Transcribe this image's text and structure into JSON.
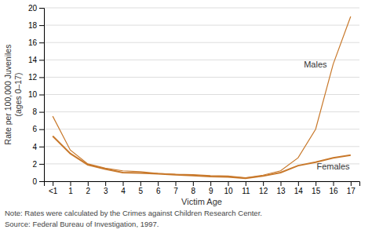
{
  "chart_data": {
    "type": "line",
    "y_label": "Rate per 100,000 Juveniles\n(ages 0–17)",
    "x_label": "Victim Age",
    "annotations": [
      "Note: Rates were calculated by the Crimes against Children Research Center.",
      "Source: Federal Bureau of Investigation, 1997."
    ],
    "categories": [
      "<1",
      "1",
      "2",
      "3",
      "4",
      "5",
      "6",
      "7",
      "8",
      "9",
      "10",
      "11",
      "12",
      "13",
      "14",
      "15",
      "16",
      "17"
    ],
    "series": [
      {
        "name": "Males",
        "color": "#C8782A",
        "values": [
          7.5,
          3.6,
          2.0,
          1.5,
          1.2,
          1.1,
          0.9,
          0.8,
          0.75,
          0.65,
          0.6,
          0.4,
          0.7,
          1.2,
          2.7,
          6.0,
          13.5,
          19.0
        ]
      },
      {
        "name": "Females",
        "color": "#C8782A",
        "values": [
          5.2,
          3.2,
          1.9,
          1.4,
          1.0,
          0.95,
          0.85,
          0.75,
          0.65,
          0.55,
          0.5,
          0.35,
          0.6,
          1.0,
          1.8,
          2.2,
          2.7,
          3.0
        ]
      }
    ],
    "ylim": [
      0,
      20
    ],
    "yticks": [
      0,
      2,
      4,
      6,
      8,
      10,
      12,
      14,
      16,
      18,
      20
    ],
    "grid": true
  }
}
